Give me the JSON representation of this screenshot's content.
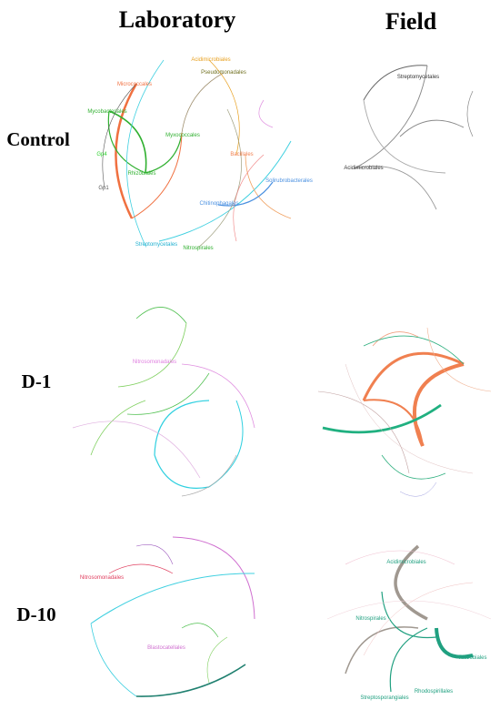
{
  "header": {
    "columns": [
      "Laboratory",
      "Field"
    ]
  },
  "rows": [
    {
      "label": "Control",
      "laboratory": {
        "nodes": [
          "Acidimicrobiales",
          "Pseudomonadales",
          "Micrococcales",
          "Mycobacteriales",
          "Myxococcales",
          "Gp4",
          "Rhizobiales",
          "Gp1",
          "Bacillales",
          "Solirubrobacterales",
          "Chitinophagales",
          "Streptomycetales",
          "Nitrospirales"
        ]
      },
      "field": {
        "nodes": [
          "Streptomycetales",
          "Acidimicrobiales"
        ]
      }
    },
    {
      "label": "D-1",
      "laboratory": {
        "nodes": [
          "Nitrosomonadales"
        ]
      },
      "field": {
        "nodes": []
      }
    },
    {
      "label": "D-10",
      "laboratory": {
        "nodes": [
          "Nitrosomonadales",
          "Blastocatellales"
        ]
      },
      "field": {
        "nodes": [
          "Acidimicrobiales",
          "Nitrospirales",
          "Rhizobiales",
          "Rhodospirillales",
          "Streptosporangiales"
        ]
      }
    }
  ]
}
